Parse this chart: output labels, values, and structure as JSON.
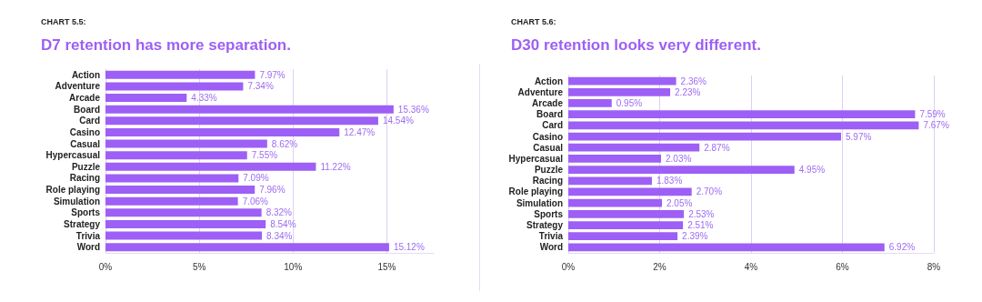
{
  "chart_data": [
    {
      "type": "bar",
      "orientation": "horizontal",
      "subtitle": "CHART 5.5:",
      "title": "D7 retention has more separation.",
      "categories": [
        "Action",
        "Adventure",
        "Arcade",
        "Board",
        "Card",
        "Casino",
        "Casual",
        "Hypercasual",
        "Puzzle",
        "Racing",
        "Role playing",
        "Simulation",
        "Sports",
        "Strategy",
        "Trivia",
        "Word"
      ],
      "values": [
        7.97,
        7.34,
        4.33,
        15.36,
        14.54,
        12.47,
        8.62,
        7.55,
        11.22,
        7.09,
        7.96,
        7.06,
        8.32,
        8.54,
        8.34,
        15.12
      ],
      "value_labels": [
        "7.97%",
        "7.34%",
        "4.33%",
        "15.36%",
        "14.54%",
        "12.47%",
        "8.62%",
        "7.55%",
        "11.22%",
        "7.09%",
        "7.96%",
        "7.06%",
        "8.32%",
        "8.54%",
        "8.34%",
        "15.12%"
      ],
      "color": "#9d5ff5",
      "xlim": [
        0,
        17.5
      ],
      "xticks": [
        {
          "value": 0,
          "label": "0%"
        },
        {
          "value": 5,
          "label": "5%"
        },
        {
          "value": 10,
          "label": "10%"
        },
        {
          "value": 15,
          "label": "15%"
        }
      ],
      "grid": "x"
    },
    {
      "type": "bar",
      "orientation": "horizontal",
      "subtitle": "CHART 5.6:",
      "title": "D30 retention looks very different.",
      "categories": [
        "Action",
        "Adventure",
        "Arcade",
        "Board",
        "Card",
        "Casino",
        "Casual",
        "Hypercasual",
        "Puzzle",
        "Racing",
        "Role playing",
        "Simulation",
        "Sports",
        "Strategy",
        "Trivia",
        "Word"
      ],
      "values": [
        2.36,
        2.23,
        0.95,
        7.59,
        7.67,
        5.97,
        2.87,
        2.03,
        4.95,
        1.83,
        2.7,
        2.05,
        2.53,
        2.51,
        2.39,
        6.92
      ],
      "value_labels": [
        "2.36%",
        "2.23%",
        "0.95%",
        "7.59%",
        "7.67%",
        "5.97%",
        "2.87%",
        "2.03%",
        "4.95%",
        "1.83%",
        "2.70%",
        "2.05%",
        "2.53%",
        "2.51%",
        "2.39%",
        "6.92%"
      ],
      "color": "#9d5ff5",
      "xlim": [
        0,
        8
      ],
      "xticks": [
        {
          "value": 0,
          "label": "0%"
        },
        {
          "value": 2,
          "label": "2%"
        },
        {
          "value": 4,
          "label": "4%"
        },
        {
          "value": 6,
          "label": "6%"
        },
        {
          "value": 8,
          "label": "8%"
        }
      ],
      "grid": "x"
    }
  ]
}
